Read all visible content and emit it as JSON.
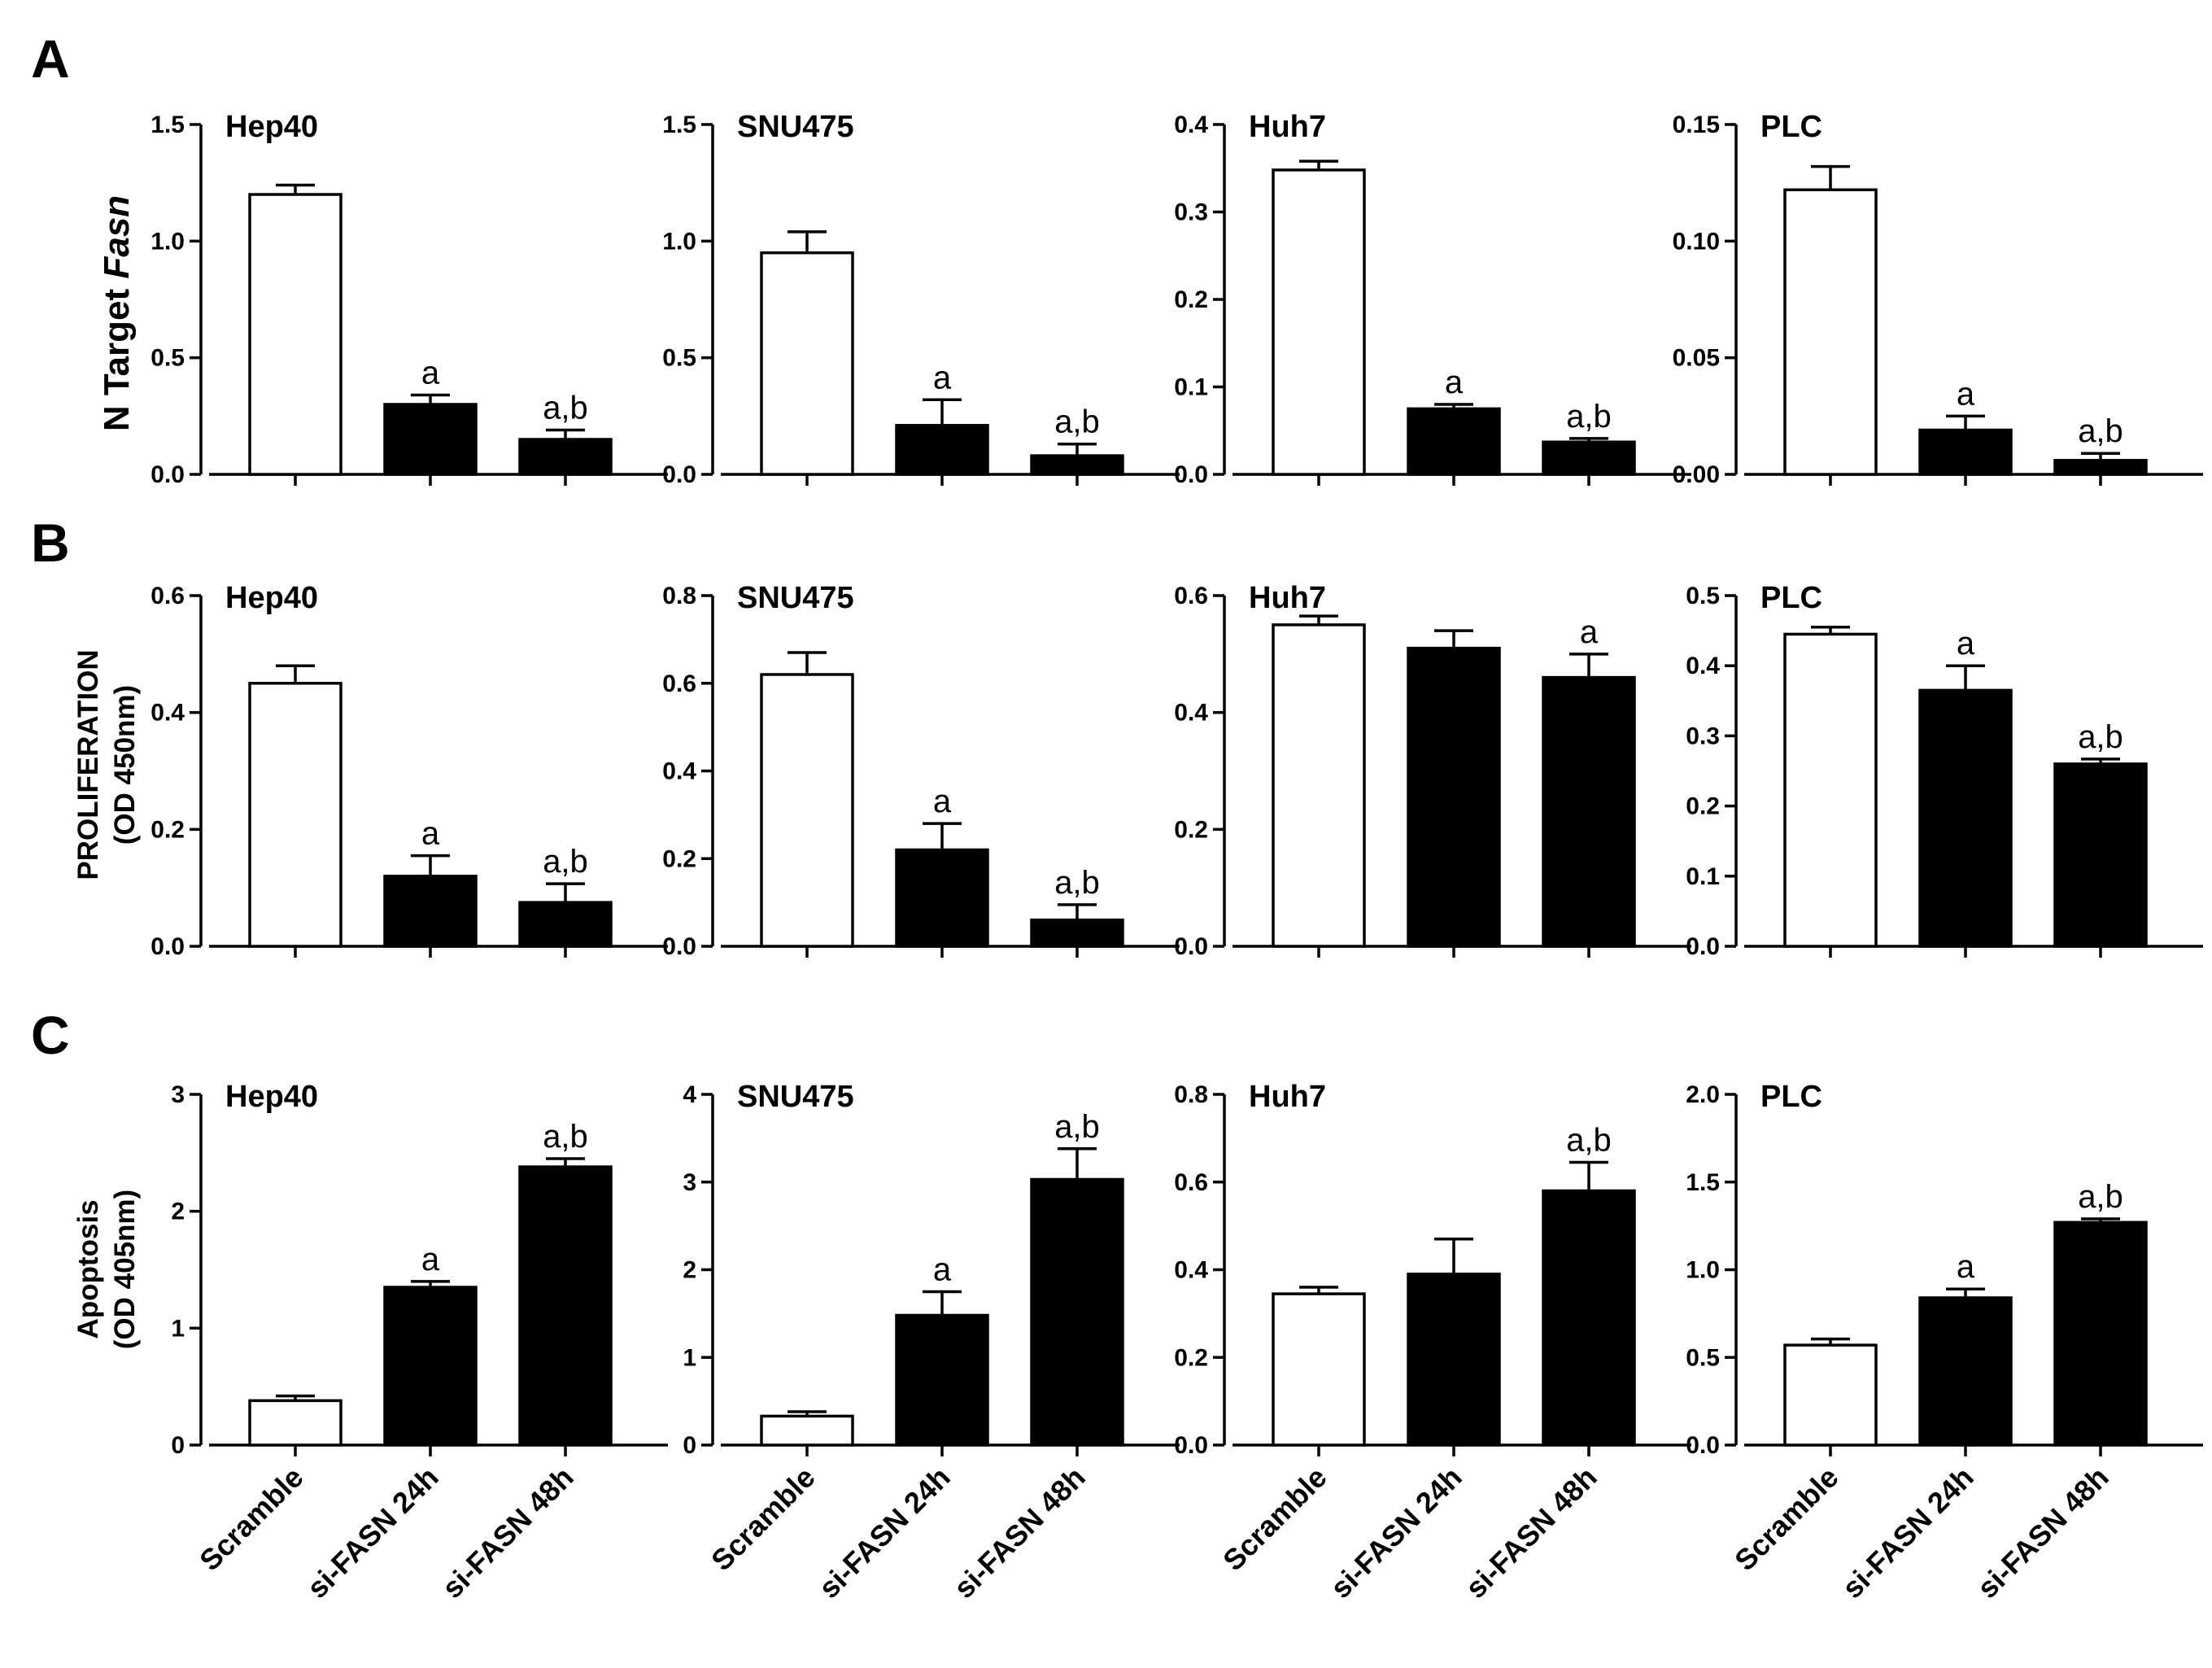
{
  "figure": {
    "categories": [
      "Scramble",
      "si-FASN 24h",
      "si-FASN 48h"
    ],
    "colors": {
      "control": "#ffffff",
      "treated": "#000000",
      "axis": "#000000"
    }
  },
  "panels": [
    {
      "label": "A",
      "ylabel": [
        "N Target ",
        "Fasn"
      ]
    },
    {
      "label": "B",
      "ylabel": [
        "PROLIFERATION",
        "(OD 450nm)"
      ]
    },
    {
      "label": "C",
      "ylabel": [
        "Apoptosis",
        "(OD 405nm)"
      ]
    }
  ],
  "chart_data": [
    {
      "type": "bar",
      "panel": "A",
      "title": "Hep40",
      "categories": [
        "Scramble",
        "si-FASN 24h",
        "si-FASN 48h"
      ],
      "values": [
        1.2,
        0.3,
        0.15
      ],
      "errors": [
        0.04,
        0.04,
        0.04
      ],
      "annotations": [
        "",
        "a",
        "a,b"
      ],
      "ylim": [
        0,
        1.5
      ],
      "yticks": [
        "0.0",
        "0.5",
        "1.0",
        "1.5"
      ]
    },
    {
      "type": "bar",
      "panel": "A",
      "title": "SNU475",
      "categories": [
        "Scramble",
        "si-FASN 24h",
        "si-FASN 48h"
      ],
      "values": [
        0.95,
        0.21,
        0.08
      ],
      "errors": [
        0.09,
        0.11,
        0.05
      ],
      "annotations": [
        "",
        "a",
        "a,b"
      ],
      "ylim": [
        0,
        1.5
      ],
      "yticks": [
        "0.0",
        "0.5",
        "1.0",
        "1.5"
      ]
    },
    {
      "type": "bar",
      "panel": "A",
      "title": "Huh7",
      "categories": [
        "Scramble",
        "si-FASN 24h",
        "si-FASN 48h"
      ],
      "values": [
        0.348,
        0.075,
        0.037
      ],
      "errors": [
        0.01,
        0.005,
        0.004
      ],
      "annotations": [
        "",
        "a",
        "a,b"
      ],
      "ylim": [
        0,
        0.4
      ],
      "yticks": [
        "0.0",
        "0.1",
        "0.2",
        "0.3",
        "0.4"
      ]
    },
    {
      "type": "bar",
      "panel": "A",
      "title": "PLC",
      "categories": [
        "Scramble",
        "si-FASN 24h",
        "si-FASN 48h"
      ],
      "values": [
        0.122,
        0.019,
        0.006
      ],
      "errors": [
        0.01,
        0.006,
        0.003
      ],
      "annotations": [
        "",
        "a",
        "a,b"
      ],
      "ylim": [
        0,
        0.15
      ],
      "yticks": [
        "0.00",
        "0.05",
        "0.10",
        "0.15"
      ]
    },
    {
      "type": "bar",
      "panel": "B",
      "title": "Hep40",
      "categories": [
        "Scramble",
        "si-FASN 24h",
        "si-FASN 48h"
      ],
      "values": [
        0.45,
        0.12,
        0.075
      ],
      "errors": [
        0.03,
        0.035,
        0.032
      ],
      "annotations": [
        "",
        "a",
        "a,b"
      ],
      "ylim": [
        0,
        0.6
      ],
      "yticks": [
        "0.0",
        "0.2",
        "0.4",
        "0.6"
      ]
    },
    {
      "type": "bar",
      "panel": "B",
      "title": "SNU475",
      "categories": [
        "Scramble",
        "si-FASN 24h",
        "si-FASN 48h"
      ],
      "values": [
        0.62,
        0.22,
        0.06
      ],
      "errors": [
        0.05,
        0.06,
        0.035
      ],
      "annotations": [
        "",
        "a",
        "a,b"
      ],
      "ylim": [
        0,
        0.8
      ],
      "yticks": [
        "0.0",
        "0.2",
        "0.4",
        "0.6",
        "0.8"
      ]
    },
    {
      "type": "bar",
      "panel": "B",
      "title": "Huh7",
      "categories": [
        "Scramble",
        "si-FASN 24h",
        "si-FASN 48h"
      ],
      "values": [
        0.55,
        0.51,
        0.46
      ],
      "errors": [
        0.015,
        0.03,
        0.04
      ],
      "annotations": [
        "",
        "",
        "a"
      ],
      "ylim": [
        0,
        0.6
      ],
      "yticks": [
        "0.0",
        "0.2",
        "0.4",
        "0.6"
      ]
    },
    {
      "type": "bar",
      "panel": "B",
      "title": "PLC",
      "categories": [
        "Scramble",
        "si-FASN 24h",
        "si-FASN 48h"
      ],
      "values": [
        0.445,
        0.365,
        0.26
      ],
      "errors": [
        0.01,
        0.035,
        0.007
      ],
      "annotations": [
        "",
        "a",
        "a,b"
      ],
      "ylim": [
        0,
        0.5
      ],
      "yticks": [
        "0.0",
        "0.1",
        "0.2",
        "0.3",
        "0.4",
        "0.5"
      ]
    },
    {
      "type": "bar",
      "panel": "C",
      "title": "Hep40",
      "categories": [
        "Scramble",
        "si-FASN 24h",
        "si-FASN 48h"
      ],
      "values": [
        0.38,
        1.35,
        2.38
      ],
      "errors": [
        0.04,
        0.05,
        0.07
      ],
      "annotations": [
        "",
        "a",
        "a,b"
      ],
      "ylim": [
        0,
        3
      ],
      "yticks": [
        "0",
        "1",
        "2",
        "3"
      ]
    },
    {
      "type": "bar",
      "panel": "C",
      "title": "SNU475",
      "categories": [
        "Scramble",
        "si-FASN 24h",
        "si-FASN 48h"
      ],
      "values": [
        0.33,
        1.48,
        3.03
      ],
      "errors": [
        0.05,
        0.27,
        0.35
      ],
      "annotations": [
        "",
        "a",
        "a,b"
      ],
      "ylim": [
        0,
        4
      ],
      "yticks": [
        "0",
        "1",
        "2",
        "3",
        "4"
      ]
    },
    {
      "type": "bar",
      "panel": "C",
      "title": "Huh7",
      "categories": [
        "Scramble",
        "si-FASN 24h",
        "si-FASN 48h"
      ],
      "values": [
        0.345,
        0.39,
        0.58
      ],
      "errors": [
        0.015,
        0.08,
        0.065
      ],
      "annotations": [
        "",
        "",
        "a,b"
      ],
      "ylim": [
        0,
        0.8
      ],
      "yticks": [
        "0.0",
        "0.2",
        "0.4",
        "0.6",
        "0.8"
      ]
    },
    {
      "type": "bar",
      "panel": "C",
      "title": "PLC",
      "categories": [
        "Scramble",
        "si-FASN 24h",
        "si-FASN 48h"
      ],
      "values": [
        0.57,
        0.84,
        1.27
      ],
      "errors": [
        0.035,
        0.05,
        0.02
      ],
      "annotations": [
        "",
        "a",
        "a,b"
      ],
      "ylim": [
        0,
        2.0
      ],
      "yticks": [
        "0.0",
        "0.5",
        "1.0",
        "1.5",
        "2.0"
      ]
    }
  ]
}
